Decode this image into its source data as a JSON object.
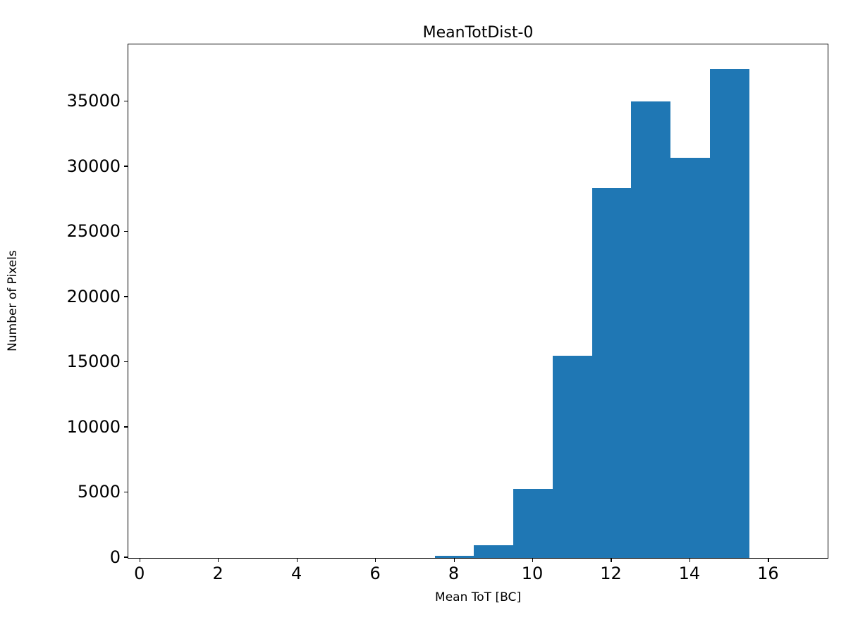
{
  "chart_data": {
    "type": "bar",
    "title": "MeanTotDist-0",
    "xlabel": "Mean ToT [BC]",
    "ylabel": "Number of Pixels",
    "bin_edges": [
      7.5,
      8.5,
      9.5,
      10.5,
      11.5,
      12.5,
      13.5,
      14.5,
      15.5
    ],
    "values": [
      150,
      1000,
      5300,
      15500,
      28400,
      35000,
      30700,
      37500
    ],
    "bar_color": "#1f77b4",
    "xlim": [
      -0.3,
      17.5
    ],
    "ylim": [
      0,
      39400
    ],
    "x_ticks": [
      0,
      2,
      4,
      6,
      8,
      10,
      12,
      14,
      16
    ],
    "y_ticks": [
      0,
      5000,
      10000,
      15000,
      20000,
      25000,
      30000,
      35000
    ],
    "grid": false,
    "legend": null
  }
}
